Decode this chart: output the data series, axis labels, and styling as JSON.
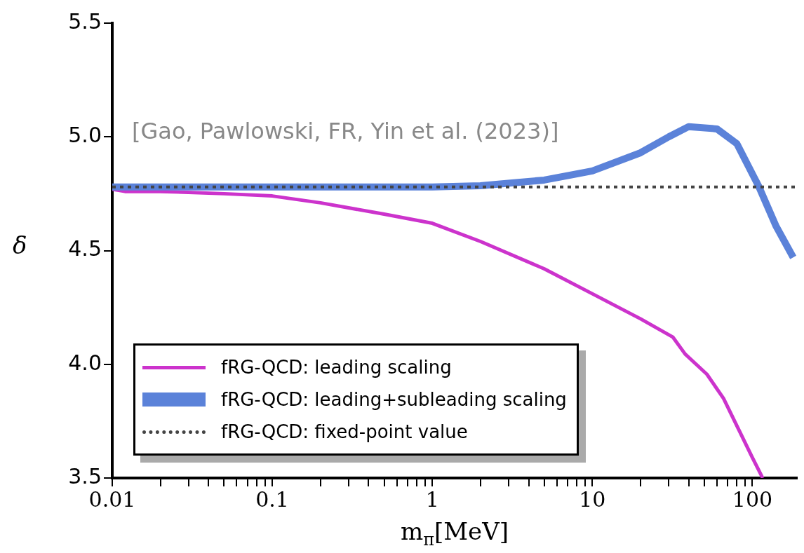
{
  "chart_data": {
    "type": "line",
    "xlabel": "m$_{π}$[MeV]",
    "ylabel": "δ",
    "log": "x",
    "xlim": [
      0.01,
      190
    ],
    "ylim": [
      3.5,
      5.5
    ],
    "xticks": [
      0.01,
      {
        "value": 0.02,
        "label": null
      },
      {
        "value": 0.03,
        "label": null
      },
      {
        "value": 0.04,
        "label": null
      },
      {
        "value": 0.05,
        "label": null
      },
      {
        "value": 0.06,
        "label": null
      },
      {
        "value": 0.07,
        "label": null
      },
      {
        "value": 0.08,
        "label": null
      },
      {
        "value": 0.09,
        "label": null
      },
      0.1,
      {
        "value": 0.2,
        "label": null
      },
      {
        "value": 0.3,
        "label": null
      },
      {
        "value": 0.4,
        "label": null
      },
      {
        "value": 0.5,
        "label": null
      },
      {
        "value": 0.6,
        "label": null
      },
      {
        "value": 0.7,
        "label": null
      },
      {
        "value": 0.8,
        "label": null
      },
      {
        "value": 0.9,
        "label": null
      },
      1,
      {
        "value": 2,
        "label": null
      },
      {
        "value": 3,
        "label": null
      },
      {
        "value": 4,
        "label": null
      },
      {
        "value": 5,
        "label": null
      },
      {
        "value": 6,
        "label": null
      },
      {
        "value": 7,
        "label": null
      },
      {
        "value": 8,
        "label": null
      },
      {
        "value": 9,
        "label": null
      },
      10,
      {
        "value": 20,
        "label": null
      },
      {
        "value": 30,
        "label": null
      },
      {
        "value": 40,
        "label": null
      },
      {
        "value": 50,
        "label": null
      },
      {
        "value": 60,
        "label": null
      },
      {
        "value": 70,
        "label": null
      },
      {
        "value": 80,
        "label": null
      },
      {
        "value": 90,
        "label": null
      },
      100
    ],
    "yticks": [
      3.5,
      {
        "value": 4,
        "label": "4.0"
      },
      4.5,
      {
        "value": 5,
        "label": "5.0"
      },
      5.5
    ],
    "grid": false,
    "legend": "bottom left",
    "marker": "none",
    "annotations": [
      "[Gao, Pawlowski, FR,  Yin et al. (2023)]"
    ],
    "series": [
      {
        "name": "fRG-QCD: leading scaling",
        "color": "#cc33cc",
        "line_style": "solid",
        "x": [
          0.01,
          0.012,
          0.02,
          0.05,
          0.1,
          0.2,
          0.5,
          1,
          2,
          5,
          10,
          20,
          31.8,
          38,
          52,
          66,
          100,
          116
        ],
        "values": [
          4.77,
          4.76,
          4.76,
          4.75,
          4.74,
          4.71,
          4.66,
          4.62,
          4.54,
          4.42,
          4.31,
          4.2,
          4.12,
          4.045,
          3.956,
          3.85,
          3.59,
          3.5
        ]
      },
      {
        "name": "fRG-QCD: leading+subleading scaling",
        "color": "#5b82d9",
        "line_style": "solid",
        "x": [
          0.01,
          0.1,
          1,
          2,
          5,
          10,
          20,
          30,
          40,
          60,
          80,
          110,
          140,
          180
        ],
        "values": [
          4.78,
          4.78,
          4.78,
          4.785,
          4.81,
          4.85,
          4.93,
          5.0,
          5.045,
          5.035,
          4.97,
          4.78,
          4.61,
          4.47
        ]
      },
      {
        "name": "fRG-QCD: fixed-point value",
        "color": "#444444",
        "line_style": "dotted",
        "x": [
          0.01,
          190
        ],
        "values": [
          4.78,
          4.78
        ]
      }
    ]
  }
}
